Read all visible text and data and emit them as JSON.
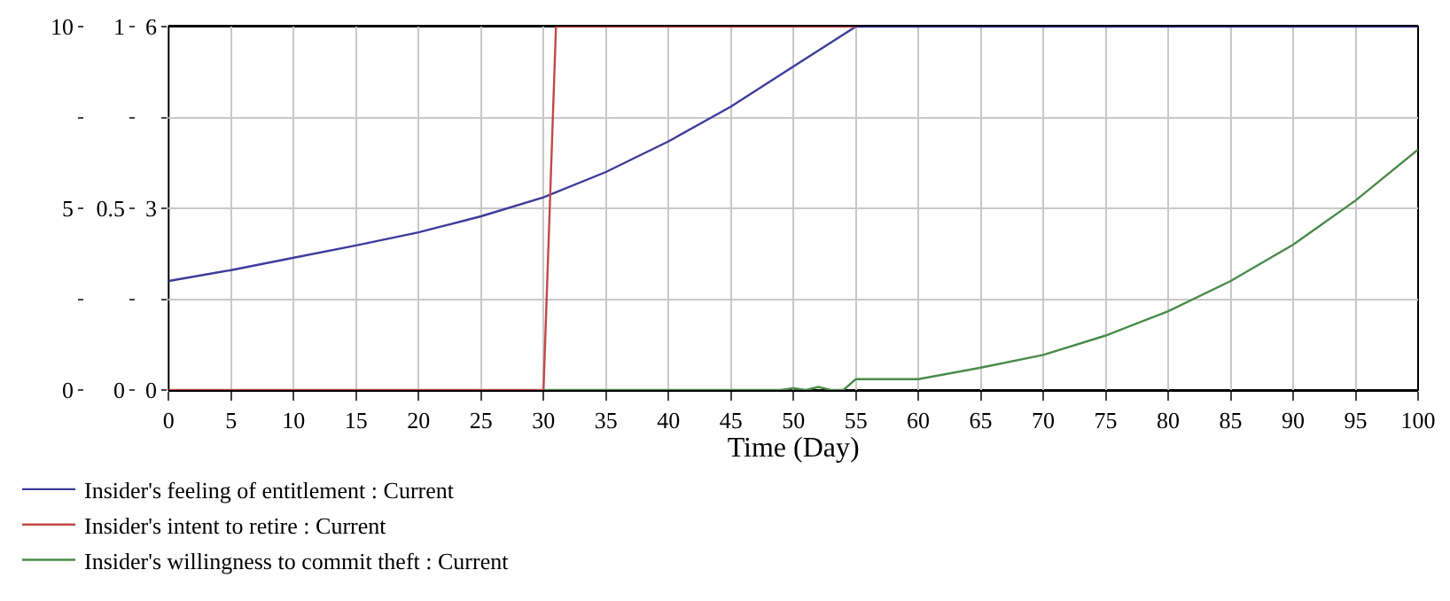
{
  "chart_data": {
    "type": "line",
    "xlabel": "Time (Day)",
    "xlim": [
      0,
      100
    ],
    "xticks": [
      0,
      5,
      10,
      15,
      20,
      25,
      30,
      35,
      40,
      45,
      50,
      55,
      60,
      65,
      70,
      75,
      80,
      85,
      90,
      95,
      100
    ],
    "ylim": [
      0,
      10
    ],
    "yticks": [
      0,
      {
        "value": 2.5,
        "label": null
      },
      5,
      {
        "value": 7.5,
        "label": null
      },
      10
    ],
    "y2lim": [
      0,
      1
    ],
    "y2ticks": [
      0,
      {
        "value": 0.25,
        "label": null
      },
      0.5,
      {
        "value": 0.75,
        "label": null
      },
      1
    ],
    "y3lim": [
      0,
      6
    ],
    "y3ticks": [
      0,
      {
        "value": 1.5,
        "label": null
      },
      3,
      {
        "value": 4.5,
        "label": null
      },
      6
    ],
    "grid": true,
    "legend": "bottom",
    "marker": "none",
    "line_style": "solid",
    "series": [
      {
        "name": "Insider's feeling of entitlement : Current",
        "color": "#3c3c9c",
        "x": [
          0,
          5,
          10,
          15,
          20,
          25,
          30,
          35,
          40,
          45,
          50,
          55,
          60,
          70,
          80,
          90,
          100
        ],
        "values": [
          3.0,
          3.3,
          3.64,
          3.98,
          4.34,
          4.78,
          5.3,
          6.0,
          6.84,
          7.8,
          8.9,
          10,
          10,
          10,
          10,
          10,
          10
        ]
      },
      {
        "name": "Insider's intent to retire : Current",
        "color": "#c04848",
        "axis": "y2",
        "x": [
          0,
          10,
          20,
          30,
          31,
          40,
          50,
          55
        ],
        "values": [
          0,
          0,
          0,
          0,
          1,
          1,
          1,
          1
        ]
      },
      {
        "name": "Insider's willingness to commit theft : Current",
        "color": "#4a8a4a",
        "axis": "y3",
        "x": [
          30,
          40,
          49,
          50,
          51,
          52,
          53,
          54,
          55,
          60,
          65,
          70,
          75,
          80,
          85,
          90,
          95,
          100
        ],
        "values": [
          0,
          0,
          0,
          0.03,
          0,
          0.05,
          0,
          0,
          0.18,
          0.18,
          0.37,
          0.58,
          0.9,
          1.3,
          1.8,
          2.4,
          3.13,
          3.97
        ]
      }
    ]
  }
}
